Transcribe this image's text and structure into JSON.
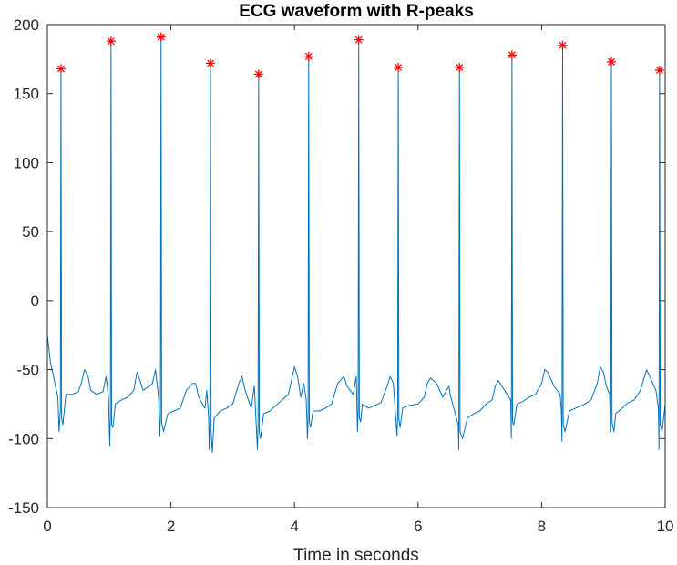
{
  "chart_data": {
    "type": "line",
    "title": "ECG waveform with R-peaks",
    "xlabel": "Time in seconds",
    "ylabel": "",
    "xlim": [
      0,
      10
    ],
    "ylim": [
      -150,
      200
    ],
    "x_ticks": [
      0,
      2,
      4,
      6,
      8,
      10
    ],
    "y_ticks": [
      -150,
      -100,
      -50,
      0,
      50,
      100,
      150,
      200
    ],
    "grid": false,
    "colors": {
      "line": "#0072bd",
      "markers": "#ff0000",
      "axes": "#262626"
    },
    "series": [
      {
        "values": [
          [
            0.0,
            -25
          ],
          [
            0.05,
            -45
          ],
          [
            0.1,
            -55
          ],
          [
            0.14,
            -64
          ],
          [
            0.17,
            -70
          ],
          [
            0.19,
            -95
          ],
          [
            0.21,
            -80
          ],
          [
            0.22,
            168
          ],
          [
            0.23,
            -85
          ],
          [
            0.25,
            -90
          ],
          [
            0.3,
            -68
          ],
          [
            0.4,
            -68
          ],
          [
            0.5,
            -66
          ],
          [
            0.55,
            -60
          ],
          [
            0.6,
            -50
          ],
          [
            0.66,
            -55
          ],
          [
            0.7,
            -65
          ],
          [
            0.8,
            -68
          ],
          [
            0.9,
            -66
          ],
          [
            0.95,
            -55
          ],
          [
            0.99,
            -70
          ],
          [
            1.01,
            -105
          ],
          [
            1.02,
            -85
          ],
          [
            1.03,
            188
          ],
          [
            1.04,
            -90
          ],
          [
            1.06,
            -92
          ],
          [
            1.1,
            -75
          ],
          [
            1.2,
            -72
          ],
          [
            1.3,
            -70
          ],
          [
            1.4,
            -65
          ],
          [
            1.45,
            -52
          ],
          [
            1.5,
            -58
          ],
          [
            1.55,
            -65
          ],
          [
            1.65,
            -62
          ],
          [
            1.7,
            -60
          ],
          [
            1.75,
            -50
          ],
          [
            1.8,
            -70
          ],
          [
            1.82,
            -98
          ],
          [
            1.83,
            -85
          ],
          [
            1.84,
            191
          ],
          [
            1.85,
            -88
          ],
          [
            1.88,
            -95
          ],
          [
            1.95,
            -82
          ],
          [
            2.05,
            -80
          ],
          [
            2.15,
            -78
          ],
          [
            2.25,
            -65
          ],
          [
            2.35,
            -60
          ],
          [
            2.4,
            -60
          ],
          [
            2.45,
            -70
          ],
          [
            2.55,
            -78
          ],
          [
            2.58,
            -65
          ],
          [
            2.61,
            -85
          ],
          [
            2.62,
            -108
          ],
          [
            2.63,
            -92
          ],
          [
            2.64,
            172
          ],
          [
            2.65,
            -95
          ],
          [
            2.67,
            -110
          ],
          [
            2.7,
            -85
          ],
          [
            2.8,
            -80
          ],
          [
            2.9,
            -78
          ],
          [
            3.0,
            -75
          ],
          [
            3.1,
            -60
          ],
          [
            3.15,
            -55
          ],
          [
            3.2,
            -65
          ],
          [
            3.3,
            -78
          ],
          [
            3.35,
            -62
          ],
          [
            3.4,
            -108
          ],
          [
            3.41,
            -90
          ],
          [
            3.42,
            164
          ],
          [
            3.43,
            -95
          ],
          [
            3.45,
            -100
          ],
          [
            3.5,
            -82
          ],
          [
            3.6,
            -80
          ],
          [
            3.7,
            -76
          ],
          [
            3.8,
            -72
          ],
          [
            3.9,
            -68
          ],
          [
            3.95,
            -58
          ],
          [
            4.0,
            -48
          ],
          [
            4.05,
            -55
          ],
          [
            4.1,
            -70
          ],
          [
            4.15,
            -60
          ],
          [
            4.19,
            -72
          ],
          [
            4.21,
            -100
          ],
          [
            4.22,
            -85
          ],
          [
            4.23,
            177
          ],
          [
            4.24,
            -88
          ],
          [
            4.26,
            -92
          ],
          [
            4.3,
            -80
          ],
          [
            4.4,
            -80
          ],
          [
            4.5,
            -78
          ],
          [
            4.6,
            -75
          ],
          [
            4.7,
            -60
          ],
          [
            4.8,
            -55
          ],
          [
            4.85,
            -62
          ],
          [
            4.95,
            -68
          ],
          [
            5.0,
            -55
          ],
          [
            5.02,
            -95
          ],
          [
            5.03,
            -80
          ],
          [
            5.04,
            189
          ],
          [
            5.05,
            -85
          ],
          [
            5.07,
            -88
          ],
          [
            5.1,
            -75
          ],
          [
            5.2,
            -78
          ],
          [
            5.3,
            -76
          ],
          [
            5.4,
            -74
          ],
          [
            5.5,
            -62
          ],
          [
            5.55,
            -55
          ],
          [
            5.6,
            -60
          ],
          [
            5.66,
            -98
          ],
          [
            5.67,
            -84
          ],
          [
            5.68,
            169
          ],
          [
            5.69,
            -86
          ],
          [
            5.71,
            -92
          ],
          [
            5.75,
            -78
          ],
          [
            5.85,
            -76
          ],
          [
            6.0,
            -75
          ],
          [
            6.1,
            -70
          ],
          [
            6.15,
            -60
          ],
          [
            6.2,
            -56
          ],
          [
            6.3,
            -60
          ],
          [
            6.4,
            -70
          ],
          [
            6.5,
            -62
          ],
          [
            6.52,
            -68
          ],
          [
            6.65,
            -90
          ],
          [
            6.66,
            -108
          ],
          [
            6.67,
            169
          ],
          [
            6.68,
            -95
          ],
          [
            6.72,
            -100
          ],
          [
            6.8,
            -85
          ],
          [
            6.9,
            -82
          ],
          [
            7.0,
            -80
          ],
          [
            7.1,
            -75
          ],
          [
            7.2,
            -72
          ],
          [
            7.25,
            -62
          ],
          [
            7.3,
            -58
          ],
          [
            7.4,
            -65
          ],
          [
            7.5,
            -72
          ],
          [
            7.51,
            -100
          ],
          [
            7.52,
            178
          ],
          [
            7.53,
            -88
          ],
          [
            7.55,
            -90
          ],
          [
            7.6,
            -75
          ],
          [
            7.7,
            -73
          ],
          [
            7.8,
            -70
          ],
          [
            7.9,
            -68
          ],
          [
            8.0,
            -60
          ],
          [
            8.05,
            -50
          ],
          [
            8.1,
            -52
          ],
          [
            8.2,
            -62
          ],
          [
            8.3,
            -68
          ],
          [
            8.32,
            -80
          ],
          [
            8.33,
            -102
          ],
          [
            8.34,
            185
          ],
          [
            8.35,
            -90
          ],
          [
            8.38,
            -95
          ],
          [
            8.45,
            -80
          ],
          [
            8.55,
            -78
          ],
          [
            8.7,
            -75
          ],
          [
            8.8,
            -72
          ],
          [
            8.9,
            -60
          ],
          [
            8.95,
            -48
          ],
          [
            9.0,
            -52
          ],
          [
            9.05,
            -62
          ],
          [
            9.1,
            -68
          ],
          [
            9.12,
            -95
          ],
          [
            9.13,
            173
          ],
          [
            9.14,
            -88
          ],
          [
            9.17,
            -95
          ],
          [
            9.2,
            -82
          ],
          [
            9.3,
            -78
          ],
          [
            9.4,
            -74
          ],
          [
            9.5,
            -72
          ],
          [
            9.6,
            -65
          ],
          [
            9.7,
            -50
          ],
          [
            9.75,
            -55
          ],
          [
            9.85,
            -65
          ],
          [
            9.89,
            -78
          ],
          [
            9.9,
            -108
          ],
          [
            9.91,
            167
          ],
          [
            9.92,
            -90
          ],
          [
            9.95,
            -95
          ],
          [
            10.0,
            -75
          ]
        ]
      }
    ],
    "r_peaks": [
      [
        0.22,
        168
      ],
      [
        1.03,
        188
      ],
      [
        1.84,
        191
      ],
      [
        2.64,
        172
      ],
      [
        3.42,
        164
      ],
      [
        4.23,
        177
      ],
      [
        5.04,
        189
      ],
      [
        5.68,
        169
      ],
      [
        6.67,
        169
      ],
      [
        7.52,
        178
      ],
      [
        8.34,
        185
      ],
      [
        9.13,
        173
      ],
      [
        9.91,
        167
      ]
    ]
  }
}
